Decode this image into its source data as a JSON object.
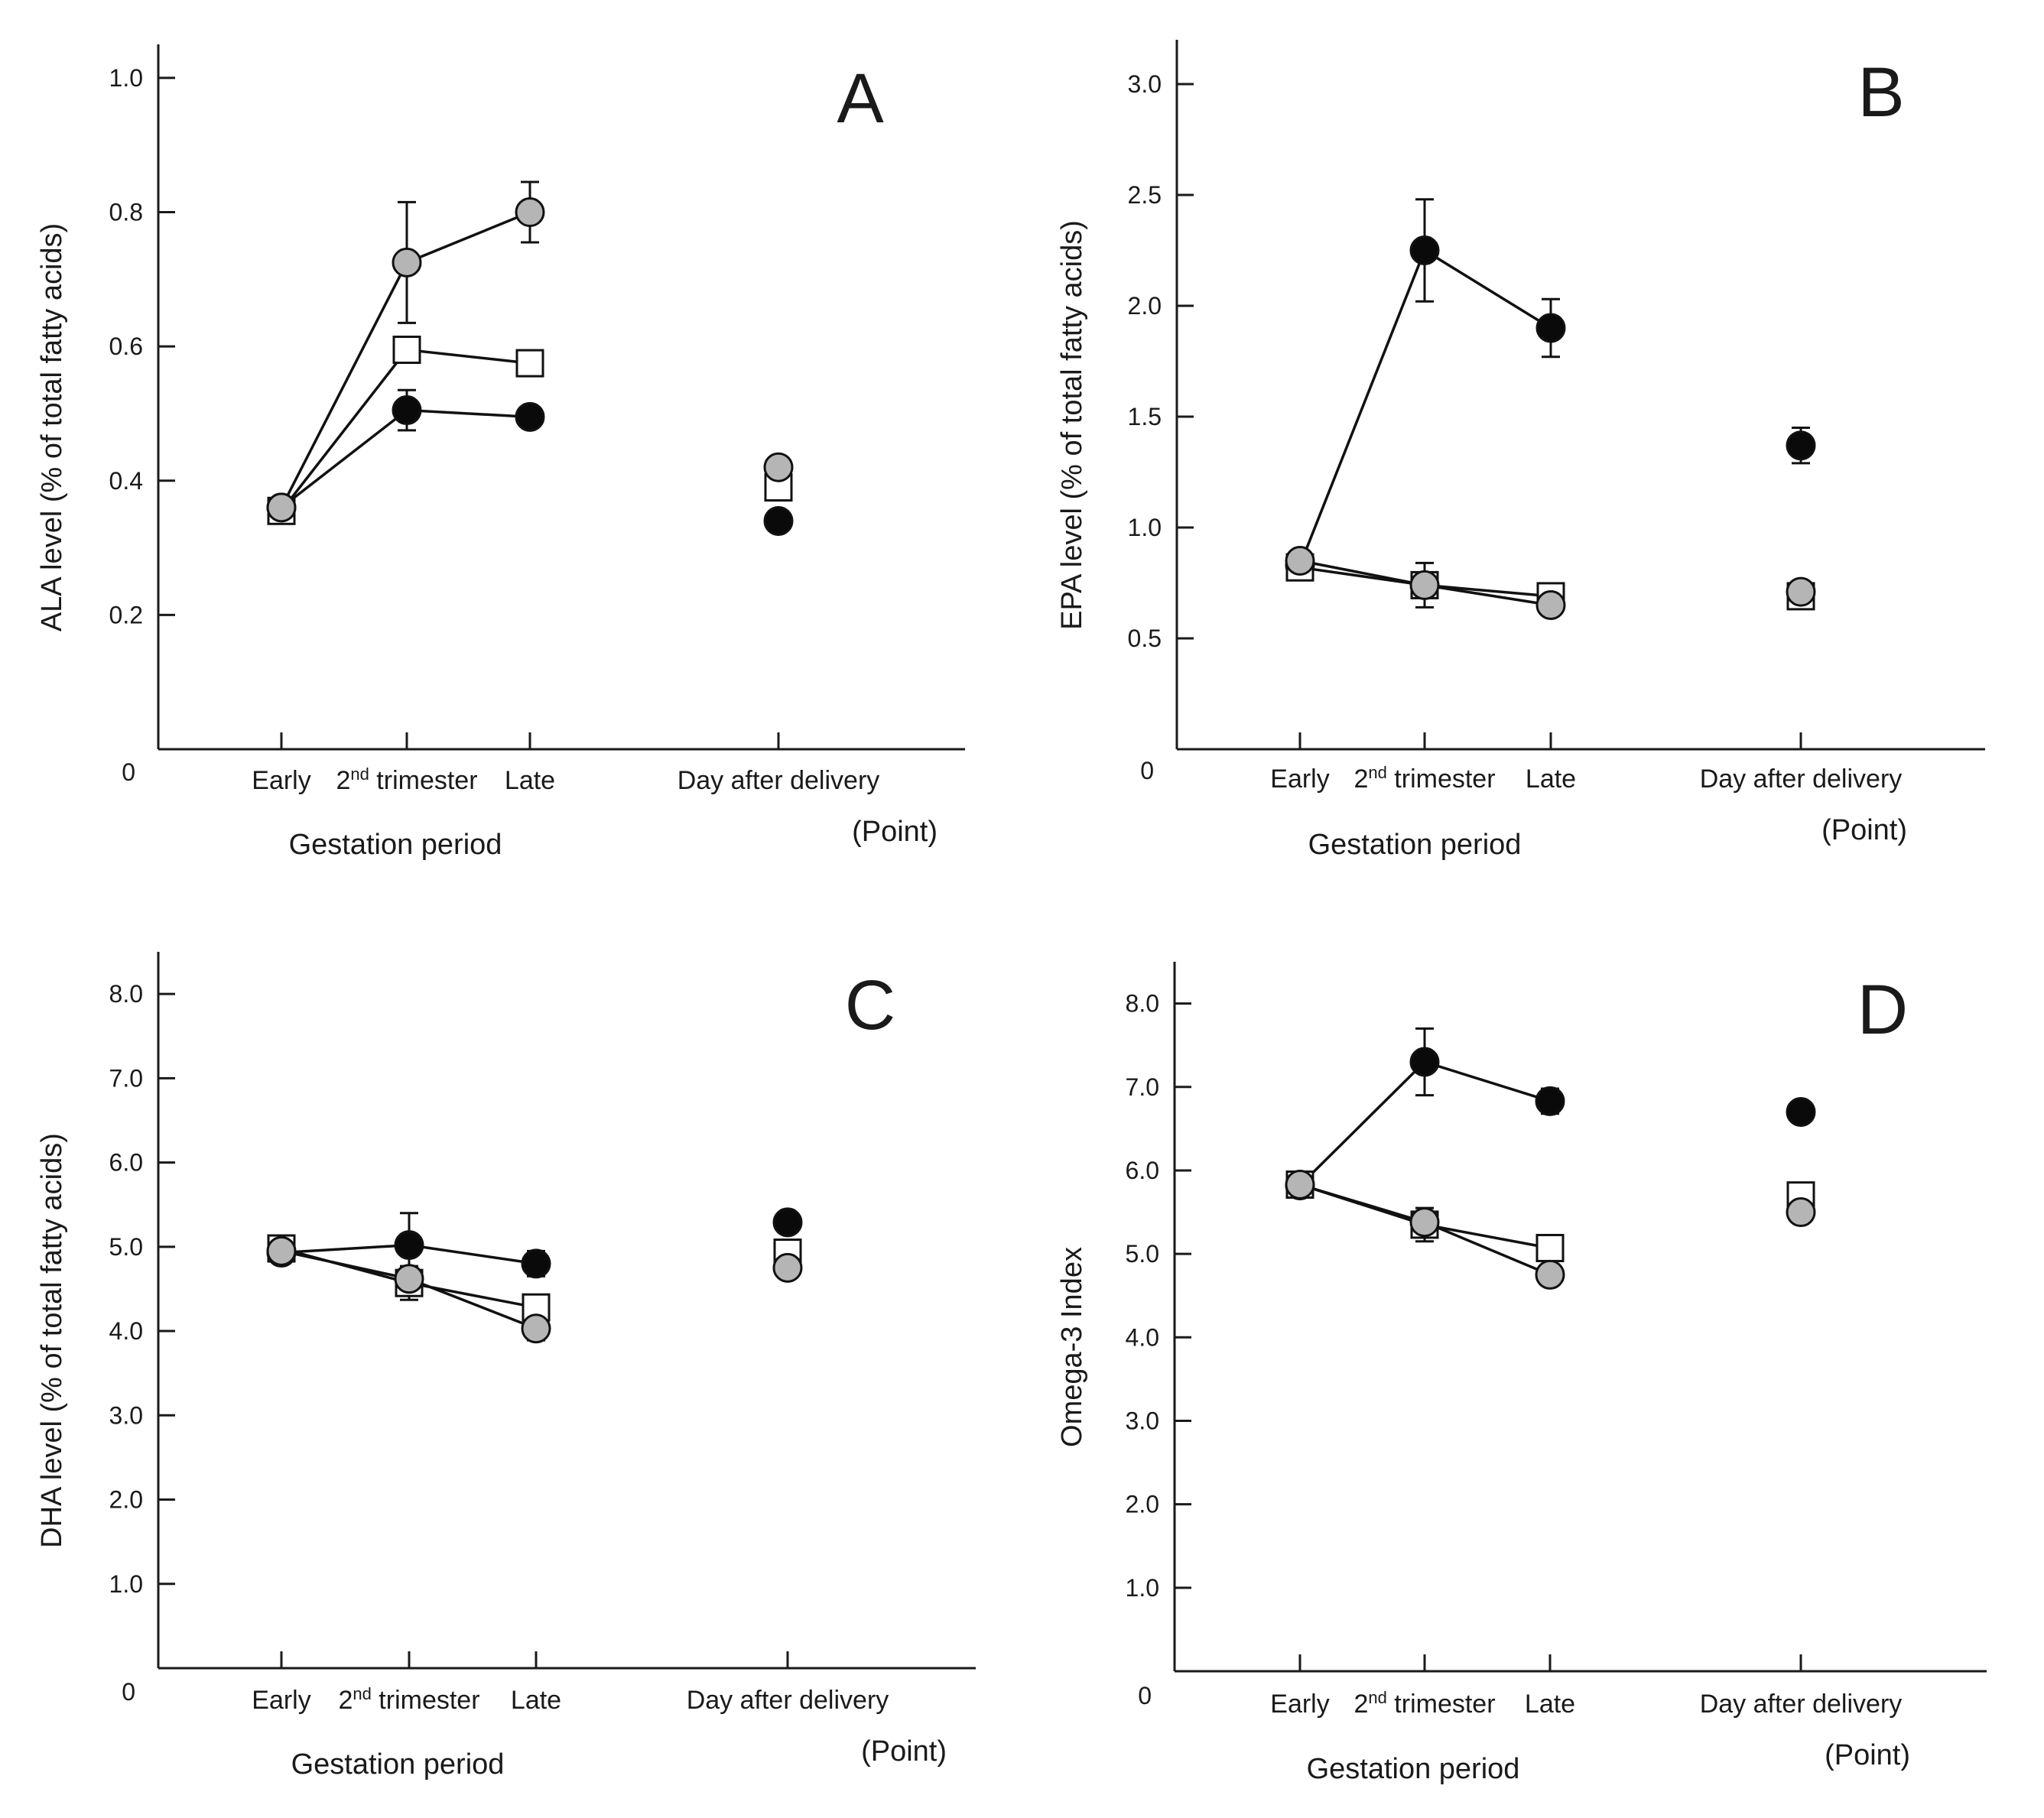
{
  "figure": {
    "x_axis_title": "Gestation period",
    "point_label": "(Point)",
    "categories": [
      {
        "base": "Early",
        "sup": "",
        "tail": ""
      },
      {
        "base": "2",
        "sup": "nd",
        "tail": " trimester"
      },
      {
        "base": "Late",
        "sup": "",
        "tail": ""
      },
      {
        "base": "Day after delivery",
        "sup": "",
        "tail": ""
      }
    ],
    "series_styles": [
      {
        "name": "series-black",
        "marker": "circle",
        "fill": "#0a0a0a"
      },
      {
        "name": "series-white",
        "marker": "square",
        "fill": "#ffffff"
      },
      {
        "name": "series-gray",
        "marker": "circle",
        "fill": "#b5b5b5"
      }
    ]
  },
  "chart_data": [
    {
      "type": "line",
      "panel": "A",
      "ylabel": "ALA level (% of total fatty acids)",
      "xlabel": "Gestation period",
      "ylim": [
        0,
        1.05
      ],
      "ticks": [
        0.2,
        0.4,
        0.6,
        0.8,
        1.0
      ],
      "tick_labels": [
        "0.2",
        "0.4",
        "0.6",
        "0.8",
        "1.0"
      ],
      "zero_label": "0",
      "x": [
        "Early",
        "2nd trimester",
        "Late",
        "Day after delivery"
      ],
      "series": [
        {
          "name": "series-black",
          "values": [
            0.36,
            0.505,
            0.495,
            0.34
          ],
          "errors": [
            0,
            0.03,
            0.015,
            0
          ]
        },
        {
          "name": "series-white",
          "values": [
            0.355,
            0.595,
            0.575,
            0.39
          ],
          "errors": [
            0,
            0,
            0,
            0
          ]
        },
        {
          "name": "series-gray",
          "values": [
            0.36,
            0.725,
            0.8,
            0.42
          ],
          "errors": [
            0,
            0.09,
            0.045,
            0
          ]
        }
      ]
    },
    {
      "type": "line",
      "panel": "B",
      "ylabel": "EPA level (% of total fatty acids)",
      "xlabel": "Gestation period",
      "ylim": [
        0,
        3.2
      ],
      "ticks": [
        0.5,
        1.0,
        1.5,
        2.0,
        2.5,
        3.0
      ],
      "tick_labels": [
        "0.5",
        "1.0",
        "1.5",
        "2.0",
        "2.5",
        "3.0"
      ],
      "zero_label": "0",
      "x": [
        "Early",
        "2nd trimester",
        "Late",
        "Day after delivery"
      ],
      "series": [
        {
          "name": "series-black",
          "values": [
            0.83,
            2.25,
            1.9,
            1.37
          ],
          "errors": [
            0,
            0.23,
            0.13,
            0.08
          ]
        },
        {
          "name": "series-white",
          "values": [
            0.82,
            0.74,
            0.69,
            0.69
          ],
          "errors": [
            0,
            0.1,
            0,
            0
          ]
        },
        {
          "name": "series-gray",
          "values": [
            0.85,
            0.74,
            0.65,
            0.71
          ],
          "errors": [
            0,
            0,
            0,
            0
          ]
        }
      ]
    },
    {
      "type": "line",
      "panel": "C",
      "ylabel": "DHA level (% of total fatty acids)",
      "xlabel": "Gestation period",
      "ylim": [
        0,
        8.5
      ],
      "ticks": [
        1,
        2,
        3,
        4,
        5,
        6,
        7,
        8
      ],
      "tick_labels": [
        "1.0",
        "2.0",
        "3.0",
        "4.0",
        "5.0",
        "6.0",
        "7.0",
        "8.0"
      ],
      "zero_label": "0",
      "x": [
        "Early",
        "2nd trimester",
        "Late",
        "Day after delivery"
      ],
      "series": [
        {
          "name": "series-black",
          "values": [
            4.93,
            5.02,
            4.8,
            5.29
          ],
          "errors": [
            0,
            0.38,
            0.15,
            0
          ]
        },
        {
          "name": "series-white",
          "values": [
            4.98,
            4.57,
            4.28,
            4.93
          ],
          "errors": [
            0,
            0.2,
            0,
            0
          ]
        },
        {
          "name": "series-gray",
          "values": [
            4.95,
            4.62,
            4.03,
            4.75
          ],
          "errors": [
            0,
            0,
            0.14,
            0.12
          ]
        }
      ]
    },
    {
      "type": "line",
      "panel": "D",
      "ylabel": "Omega-3 Index",
      "xlabel": "Gestation period",
      "ylim": [
        0,
        8.5
      ],
      "ticks": [
        1,
        2,
        3,
        4,
        5,
        6,
        7,
        8
      ],
      "tick_labels": [
        "1.0",
        "2.0",
        "3.0",
        "4.0",
        "5.0",
        "6.0",
        "7.0",
        "8.0"
      ],
      "zero_label": "0",
      "x": [
        "Early",
        "2nd trimester",
        "Late",
        "Day after delivery"
      ],
      "series": [
        {
          "name": "series-black",
          "values": [
            5.82,
            7.3,
            6.83,
            6.7
          ],
          "errors": [
            0,
            0.4,
            0.15,
            0
          ]
        },
        {
          "name": "series-white",
          "values": [
            5.83,
            5.35,
            5.07,
            5.7
          ],
          "errors": [
            0,
            0.2,
            0,
            0
          ]
        },
        {
          "name": "series-gray",
          "values": [
            5.83,
            5.38,
            4.75,
            5.5
          ],
          "errors": [
            0,
            0,
            0,
            0.1
          ]
        }
      ]
    }
  ]
}
